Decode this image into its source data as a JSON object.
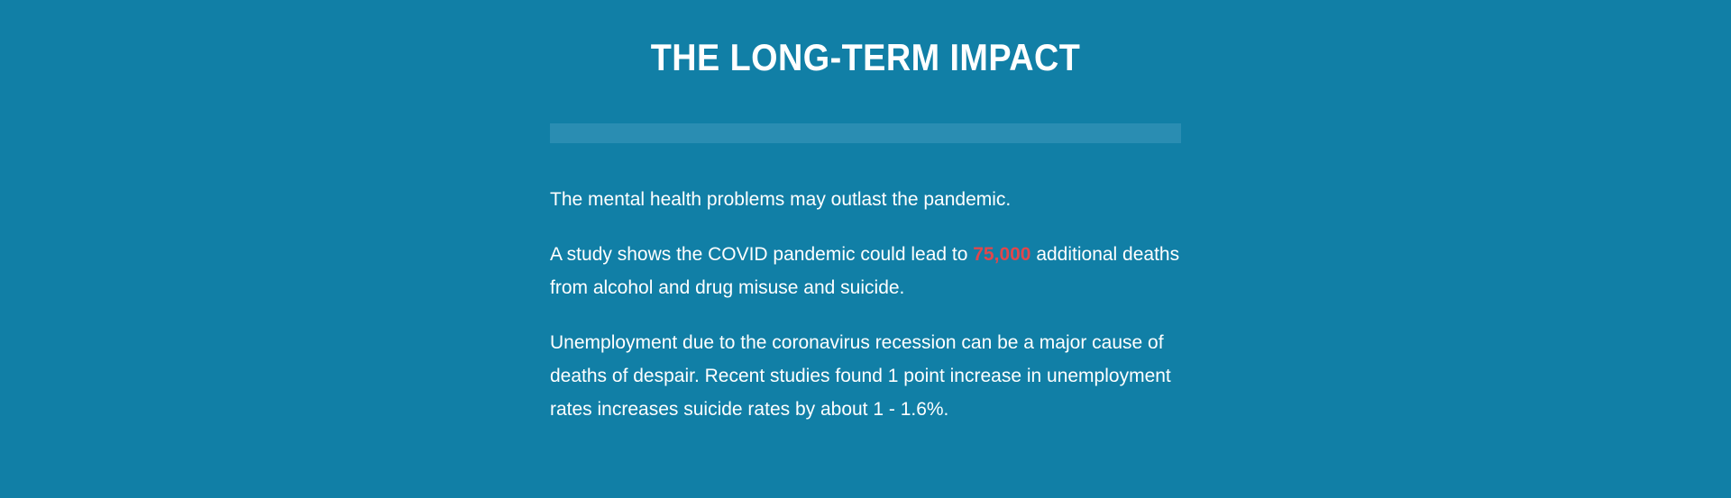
{
  "section": {
    "title": "THE LONG-TERM IMPACT",
    "paragraph1": "The mental health problems may outlast the pandemic.",
    "paragraph2": {
      "before": "A study shows the COVID pandemic could lead to ",
      "highlight": "75,000",
      "after": " additional deaths from alcohol and drug misuse and suicide."
    },
    "paragraph3": "Unemployment due to the coronavirus recession can be a major cause of deaths of despair. Recent studies found 1 point increase in unemployment rates increases suicide rates by about 1 - 1.6%."
  },
  "colors": {
    "background": "#117fa6",
    "divider": "#2a8db2",
    "highlight": "#e0474c",
    "text": "#ffffff"
  }
}
